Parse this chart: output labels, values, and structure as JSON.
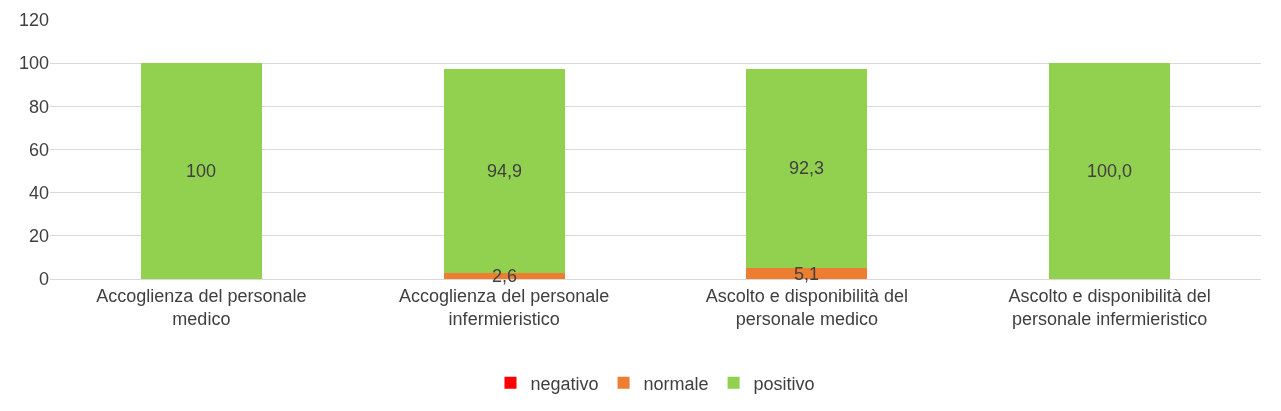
{
  "chart_data": {
    "type": "bar",
    "stacked": true,
    "categories": [
      "Accoglienza del personale medico",
      "Accoglienza del personale infermieristico",
      "Ascolto e disponibilità del personale medico",
      "Ascolto e disponibilità del personale infermieristico"
    ],
    "series": [
      {
        "name": "negativo",
        "color": "#ff0000",
        "values": [
          null,
          null,
          null,
          null
        ]
      },
      {
        "name": "normale",
        "color": "#ed7d31",
        "values": [
          null,
          2.6,
          5.1,
          null
        ],
        "value_labels": [
          null,
          "2,6",
          "5,1",
          null
        ]
      },
      {
        "name": "positivo",
        "color": "#92d050",
        "values": [
          100,
          94.9,
          92.3,
          100
        ],
        "value_labels": [
          "100",
          "94,9",
          "92,3",
          "100,0"
        ]
      }
    ],
    "ylim": [
      0,
      120
    ],
    "yticks": [
      0,
      20,
      40,
      60,
      80,
      100,
      120
    ],
    "grid": "y",
    "legend": "bottom"
  }
}
